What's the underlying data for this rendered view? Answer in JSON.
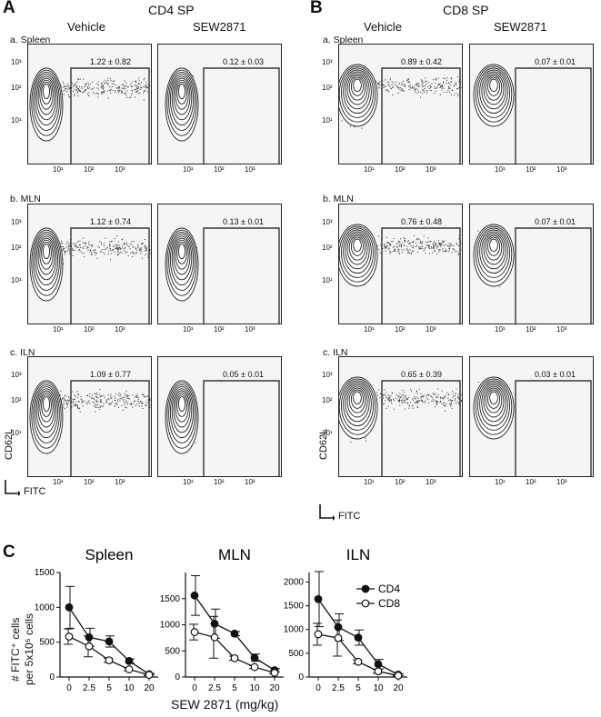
{
  "panels": {
    "A": {
      "letter": "A",
      "title": "CD4 SP"
    },
    "B": {
      "letter": "B",
      "title": "CD8 SP"
    },
    "C": {
      "letter": "C"
    }
  },
  "columns": [
    "Vehicle",
    "SEW2871"
  ],
  "rows": [
    "a. Spleen",
    "b. MLN",
    "c. ILN"
  ],
  "gates": {
    "A": [
      [
        "1.22 ± 0.82",
        "0.12 ± 0.03"
      ],
      [
        "1.12 ± 0.74",
        "0.13 ± 0.01"
      ],
      [
        "1.09 ± 0.77",
        "0.05 ± 0.01"
      ]
    ],
    "B": [
      [
        "0.89 ± 0.42",
        "0.07 ± 0.01"
      ],
      [
        "0.76 ± 0.48",
        "0.07 ± 0.01"
      ],
      [
        "0.65 ± 0.39",
        "0.03 ± 0.01"
      ]
    ]
  },
  "flow_axes": {
    "y_label": "CD62L",
    "x_label": "FITC",
    "y_ticks": [
      "10³",
      "10²",
      "10¹"
    ],
    "x_ticks": [
      "10¹",
      "10²",
      "10³"
    ]
  },
  "chart_data": [
    {
      "type": "line",
      "title": "Spleen",
      "x": [
        0,
        2.5,
        5,
        10,
        20
      ],
      "x_ticks": [
        "0",
        "2.5",
        "5",
        "10",
        "20"
      ],
      "ylim": [
        0,
        1500
      ],
      "y_ticks": [
        0,
        500,
        1000,
        1500
      ],
      "series": [
        {
          "name": "CD4",
          "values": [
            1000,
            570,
            510,
            230,
            40
          ],
          "errors": [
            300,
            130,
            80,
            30,
            10
          ]
        },
        {
          "name": "CD8",
          "values": [
            580,
            440,
            240,
            110,
            30
          ],
          "errors": [
            110,
            150,
            30,
            20,
            10
          ]
        }
      ]
    },
    {
      "type": "line",
      "title": "MLN",
      "x": [
        0,
        2.5,
        5,
        10,
        20
      ],
      "x_ticks": [
        "0",
        "2.5",
        "5",
        "10",
        "20"
      ],
      "ylim": [
        0,
        2000
      ],
      "y_ticks": [
        0,
        500,
        1000,
        1500
      ],
      "series": [
        {
          "name": "CD4",
          "values": [
            1560,
            1020,
            830,
            370,
            130
          ],
          "errors": [
            380,
            280,
            40,
            70,
            30
          ]
        },
        {
          "name": "CD8",
          "values": [
            860,
            760,
            360,
            190,
            80
          ],
          "errors": [
            150,
            400,
            40,
            30,
            20
          ]
        }
      ]
    },
    {
      "type": "line",
      "title": "ILN",
      "x": [
        0,
        2.5,
        5,
        10,
        20
      ],
      "x_ticks": [
        "0",
        "2.5",
        "5",
        "10",
        "20"
      ],
      "ylim": [
        0,
        2200
      ],
      "y_ticks": [
        0,
        500,
        1000,
        1500,
        2000
      ],
      "series": [
        {
          "name": "CD4",
          "values": [
            1640,
            1050,
            830,
            270,
            50
          ],
          "errors": [
            580,
            280,
            160,
            100,
            20
          ]
        },
        {
          "name": "CD8",
          "values": [
            900,
            820,
            320,
            120,
            30
          ],
          "errors": [
            230,
            380,
            40,
            40,
            10
          ]
        }
      ]
    }
  ],
  "chart_common": {
    "ylabel_line1": "# FITC⁺ cells",
    "ylabel_line2": "per 5x10⁵ cells",
    "xlabel": "SEW 2871 (mg/kg)",
    "legend": [
      "CD4",
      "CD8"
    ]
  }
}
